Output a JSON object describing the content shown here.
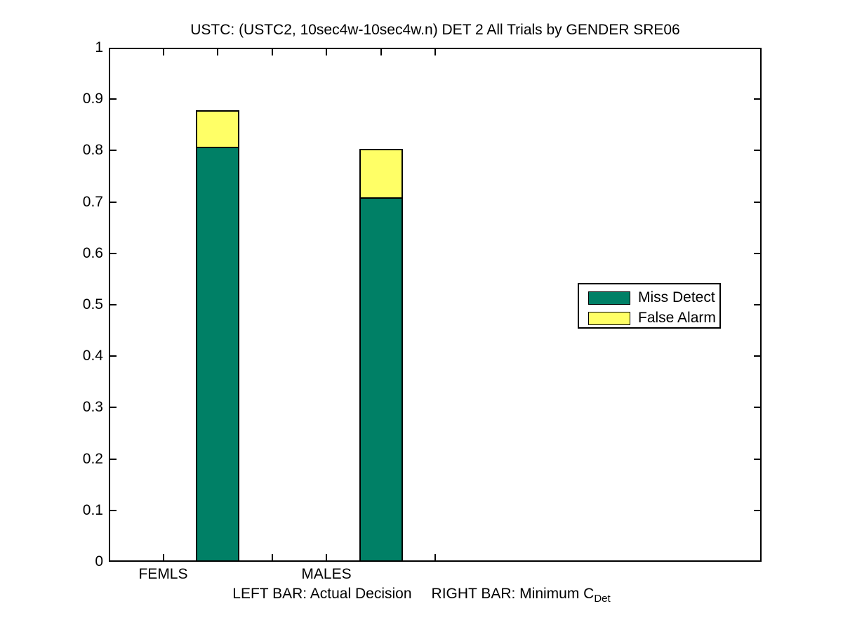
{
  "figure": {
    "title": "USTC: (USTC2, 10sec4w-10sec4w.n) DET 2 All Trials by GENDER SRE06",
    "footer": {
      "left_part": "LEFT BAR: Actual Decision",
      "right_part": "RIGHT BAR: Minimum C",
      "subscript": "Det"
    }
  },
  "legend": {
    "items": [
      {
        "label": "Miss Detect",
        "color": "#008066"
      },
      {
        "label": "False Alarm",
        "color": "#FFFF66"
      }
    ]
  },
  "chart_data": {
    "type": "bar",
    "stacked": true,
    "title": "USTC: (USTC2, 10sec4w-10sec4w.n) DET 2 All Trials by GENDER SRE06",
    "categories": [
      "FEMLS",
      "MALES"
    ],
    "series": [
      {
        "name": "Miss Detect",
        "color": "#008066",
        "values": [
          0.808,
          0.709
        ]
      },
      {
        "name": "False Alarm",
        "color": "#FFFF66",
        "values": [
          0.071,
          0.094
        ]
      }
    ],
    "stack_totals": [
      0.879,
      0.803
    ],
    "ylabel": "",
    "xlabel": "LEFT BAR: Actual Decision    RIGHT BAR: Minimum C_Det",
    "ylim": [
      0,
      1
    ],
    "yticks": [
      0,
      0.1,
      0.2,
      0.3,
      0.4,
      0.5,
      0.6,
      0.7,
      0.8,
      0.9,
      1
    ],
    "ytick_labels": [
      "0",
      "0.1",
      "0.2",
      "0.3",
      "0.4",
      "0.5",
      "0.6",
      "0.7",
      "0.8",
      "0.9",
      "1"
    ],
    "xlim": [
      0,
      12
    ],
    "xticks": [
      {
        "pos": 1,
        "label": "FEMLS"
      },
      {
        "pos": 2,
        "label": ""
      },
      {
        "pos": 3,
        "label": ""
      },
      {
        "pos": 4,
        "label": "MALES"
      },
      {
        "pos": 5,
        "label": ""
      },
      {
        "pos": 6,
        "label": ""
      }
    ],
    "bar_positions": [
      2,
      5
    ],
    "bar_width_units": 0.8,
    "bar_edge_color": "#000000",
    "grid": false,
    "legend_position": "middle-right",
    "background_color": "#ffffff"
  }
}
